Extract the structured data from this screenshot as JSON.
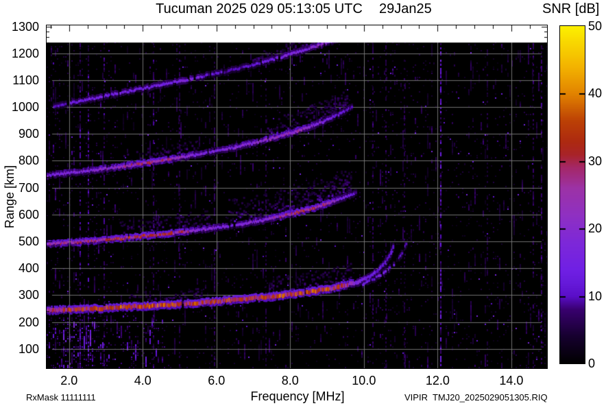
{
  "title": {
    "main": "Tucuman 2025 029 05:13:05 UTC",
    "date": "29Jan25"
  },
  "labels": {
    "snr": "SNR [dB]",
    "x_axis": "Frequency [MHz]",
    "y_axis": "Range [km]",
    "rx_mask": "RxMask 11111111",
    "file_id": "VIPIR  TMJ20_2025029051305.RIQ"
  },
  "chart_data": {
    "type": "heatmap",
    "title": "Tucuman 2025 029 05:13:05 UTC",
    "xlabel": "Frequency [MHz]",
    "ylabel": "Range [km]",
    "xlim": [
      1.39,
      14.97
    ],
    "ylim": [
      28,
      1304
    ],
    "data_top_km": 1240,
    "grid": true,
    "x_tick_values": [
      2,
      4,
      6,
      8,
      10,
      12,
      14
    ],
    "x_tick_labels": [
      "2.0",
      "4.0",
      "6.0",
      "8.0",
      "10.0",
      "12.0",
      "14.0"
    ],
    "y_tick_values": [
      100,
      200,
      300,
      400,
      500,
      600,
      700,
      800,
      900,
      1000,
      1100,
      1200,
      1300
    ],
    "y_tick_labels": [
      "100",
      "200",
      "300",
      "400",
      "500",
      "600",
      "700",
      "800",
      "900",
      "1000",
      "1100",
      "1200",
      "1300"
    ],
    "colorbar": {
      "label": "SNR [dB]",
      "min": 0,
      "max": 50,
      "tick_values": [
        0,
        10,
        20,
        30,
        40,
        50
      ],
      "tick_labels": [
        "0",
        "10",
        "20",
        "30",
        "40",
        "50"
      ],
      "stops": [
        [
          0.0,
          "#000000"
        ],
        [
          0.08,
          "#16002e"
        ],
        [
          0.16,
          "#38006e"
        ],
        [
          0.2,
          "#5a0ec8"
        ],
        [
          0.24,
          "#661ada"
        ],
        [
          0.28,
          "#7020e4"
        ],
        [
          0.36,
          "#7d28d8"
        ],
        [
          0.44,
          "#8f30c2"
        ],
        [
          0.52,
          "#9c32a6"
        ],
        [
          0.58,
          "#a4286a"
        ],
        [
          0.62,
          "#a82328"
        ],
        [
          0.66,
          "#ad2a10"
        ],
        [
          0.72,
          "#bc4105"
        ],
        [
          0.8,
          "#e28300"
        ],
        [
          0.88,
          "#f3b300"
        ],
        [
          1.0,
          "#fcf000"
        ]
      ]
    },
    "echo_traces": [
      {
        "name": "F-hop1-O",
        "core": 2,
        "gap": 0.05,
        "points": [
          [
            1.39,
            243
          ],
          [
            2.5,
            248
          ],
          [
            3.5,
            255
          ],
          [
            4.5,
            262
          ],
          [
            5.5,
            271
          ],
          [
            6.5,
            282
          ],
          [
            7.5,
            294
          ],
          [
            8.3,
            307
          ],
          [
            9.0,
            322
          ],
          [
            9.5,
            337
          ],
          [
            9.9,
            352
          ],
          [
            10.2,
            372
          ],
          [
            10.45,
            398
          ],
          [
            10.6,
            424
          ],
          [
            10.72,
            452
          ],
          [
            10.8,
            480
          ]
        ],
        "snr": [
          [
            1.39,
            25
          ],
          [
            2.0,
            30
          ],
          [
            3.0,
            31
          ],
          [
            4.5,
            33
          ],
          [
            6.0,
            30
          ],
          [
            7.5,
            31
          ],
          [
            8.5,
            33
          ],
          [
            9.3,
            30
          ],
          [
            9.7,
            22
          ],
          [
            10.0,
            15
          ],
          [
            10.3,
            12
          ],
          [
            10.8,
            10
          ]
        ]
      },
      {
        "name": "F-hop1-X",
        "core": 1,
        "gap": 0.3,
        "points": [
          [
            9.95,
            340
          ],
          [
            10.25,
            358
          ],
          [
            10.5,
            378
          ],
          [
            10.75,
            404
          ],
          [
            10.95,
            436
          ],
          [
            11.1,
            470
          ],
          [
            11.18,
            500
          ]
        ],
        "snr": [
          [
            9.95,
            12
          ],
          [
            10.5,
            14
          ],
          [
            10.9,
            13
          ],
          [
            11.18,
            10
          ]
        ]
      },
      {
        "name": "F-hop2",
        "core": 1,
        "gap": 0.1,
        "points": [
          [
            1.39,
            489
          ],
          [
            2.5,
            500
          ],
          [
            3.5,
            512
          ],
          [
            4.5,
            526
          ],
          [
            5.5,
            542
          ],
          [
            6.5,
            560
          ],
          [
            7.3,
            579
          ],
          [
            8.0,
            600
          ],
          [
            8.6,
            622
          ],
          [
            9.1,
            645
          ],
          [
            9.5,
            666
          ],
          [
            9.8,
            682
          ]
        ],
        "snr": [
          [
            1.39,
            22
          ],
          [
            2.2,
            26
          ],
          [
            3.0,
            28
          ],
          [
            4.2,
            29
          ],
          [
            5.0,
            26
          ],
          [
            5.6,
            18
          ],
          [
            6.5,
            15
          ],
          [
            7.4,
            20
          ],
          [
            7.9,
            26
          ],
          [
            8.5,
            28
          ],
          [
            9.0,
            24
          ],
          [
            9.4,
            15
          ],
          [
            9.8,
            10
          ]
        ]
      },
      {
        "name": "F-hop3",
        "core": 1,
        "gap": 0.12,
        "points": [
          [
            1.39,
            744
          ],
          [
            2.5,
            762
          ],
          [
            3.5,
            780
          ],
          [
            4.5,
            800
          ],
          [
            5.5,
            823
          ],
          [
            6.5,
            850
          ],
          [
            7.5,
            882
          ],
          [
            8.3,
            915
          ],
          [
            8.9,
            945
          ],
          [
            9.4,
            978
          ],
          [
            9.7,
            1000
          ]
        ],
        "snr": [
          [
            1.39,
            16
          ],
          [
            2.5,
            18
          ],
          [
            3.4,
            22
          ],
          [
            4.0,
            27
          ],
          [
            4.6,
            26
          ],
          [
            5.2,
            18
          ],
          [
            6.0,
            15
          ],
          [
            6.8,
            19
          ],
          [
            7.5,
            21
          ],
          [
            8.2,
            22
          ],
          [
            8.8,
            18
          ],
          [
            9.3,
            13
          ],
          [
            9.7,
            9
          ]
        ]
      },
      {
        "name": "F-hop4",
        "core": 1,
        "gap": 0.22,
        "points": [
          [
            1.6,
            1000
          ],
          [
            2.5,
            1028
          ],
          [
            3.5,
            1055
          ],
          [
            4.5,
            1082
          ],
          [
            5.5,
            1110
          ],
          [
            6.5,
            1140
          ],
          [
            7.5,
            1175
          ],
          [
            8.4,
            1212
          ],
          [
            9.0,
            1238
          ],
          [
            9.3,
            1252
          ]
        ],
        "snr": [
          [
            1.6,
            10
          ],
          [
            2.2,
            13
          ],
          [
            3.0,
            14
          ],
          [
            4.0,
            14
          ],
          [
            5.0,
            15
          ],
          [
            5.4,
            18
          ],
          [
            5.7,
            10
          ],
          [
            6.5,
            9
          ],
          [
            7.2,
            12
          ],
          [
            7.8,
            15
          ],
          [
            8.4,
            17
          ],
          [
            8.8,
            20
          ],
          [
            9.1,
            15
          ],
          [
            9.3,
            12
          ]
        ]
      }
    ],
    "diffuse_clouds": [
      {
        "trace": 0,
        "f": [
          7.4,
          9.7
        ],
        "up": 70,
        "density": 0.55
      },
      {
        "trace": 0,
        "f": [
          3.6,
          5.6
        ],
        "up": 50,
        "density": 0.25
      },
      {
        "trace": 2,
        "f": [
          6.3,
          9.7
        ],
        "up": 95,
        "density": 0.8
      },
      {
        "trace": 2,
        "f": [
          3.4,
          5.8
        ],
        "up": 65,
        "density": 0.4
      },
      {
        "trace": 3,
        "f": [
          7.3,
          9.6
        ],
        "up": 75,
        "density": 0.6
      },
      {
        "trace": 3,
        "f": [
          3.5,
          5.5
        ],
        "up": 50,
        "density": 0.3
      },
      {
        "trace": 4,
        "f": [
          7.0,
          9.2
        ],
        "up": 38,
        "density": 0.35
      }
    ],
    "rfi_columns": [
      {
        "freq": 12.09,
        "strength": 0.9
      },
      {
        "freq": 2.3,
        "strength": 0.55
      },
      {
        "freq": 2.52,
        "strength": 0.6
      },
      {
        "freq": 2.95,
        "strength": 0.45
      },
      {
        "freq": 4.3,
        "strength": 0.45
      },
      {
        "freq": 5.0,
        "strength": 0.32
      },
      {
        "freq": 5.95,
        "strength": 0.35
      },
      {
        "freq": 7.35,
        "strength": 0.3
      },
      {
        "freq": 10.25,
        "strength": 0.4
      },
      {
        "freq": 10.6,
        "strength": 0.38
      },
      {
        "freq": 11.1,
        "strength": 0.3
      },
      {
        "freq": 13.35,
        "strength": 0.22
      },
      {
        "freq": 14.6,
        "strength": 0.4
      },
      {
        "freq": 14.82,
        "strength": 0.45
      }
    ],
    "noise": {
      "seed": 1337,
      "zones": [
        {
          "f": [
            1.39,
            4.6
          ],
          "h": [
            28,
            235
          ],
          "mult": 3.0,
          "snr_add": 4
        },
        {
          "f": [
            1.85,
            2.75
          ],
          "h": [
            28,
            215
          ],
          "mult": 2.2,
          "snr_add": 3
        },
        {
          "f": [
            1.39,
            3.3
          ],
          "h": [
            235,
            1240
          ],
          "mult": 1.6,
          "snr_add": 1
        },
        {
          "f": [
            14.5,
            14.97
          ],
          "h": [
            28,
            270
          ],
          "mult": 2.2,
          "snr_add": 2
        },
        {
          "f": [
            10.4,
            11.9
          ],
          "h": [
            28,
            1240
          ],
          "mult": 1.35,
          "snr_add": 0.5
        }
      ]
    }
  }
}
